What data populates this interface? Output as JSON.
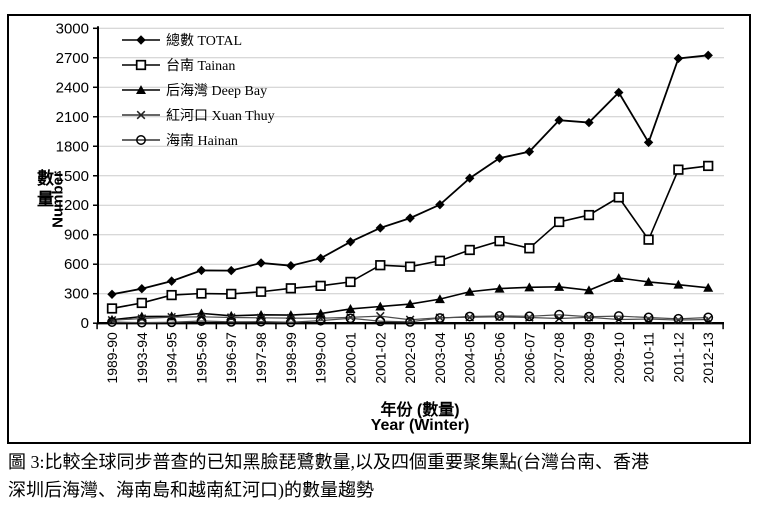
{
  "figure": {
    "caption_line1": "圖 3:比較全球同步普查的已知黑臉琵鷺數量,以及四個重要聚集點(台灣台南、香港",
    "caption_line2": "深圳后海灣、海南島和越南紅河口)的數量趨勢"
  },
  "chart_data": {
    "type": "line",
    "title": "",
    "grid": true,
    "legend_position": "top-left-inside",
    "x_axis": {
      "title_zh": "年份 (數量)",
      "title_en": "Year (Winter)",
      "categories": [
        "1989-90",
        "1993-94",
        "1994-95",
        "1995-96",
        "1996-97",
        "1997-98",
        "1998-99",
        "1999-00",
        "2000-01",
        "2001-02",
        "2002-03",
        "2003-04",
        "2004-05",
        "2005-06",
        "2006-07",
        "2007-08",
        "2008-09",
        "2009-10",
        "2010-11",
        "2011-12",
        "2012-13"
      ]
    },
    "y_axis": {
      "title_zh": "數量",
      "title_en": "Number",
      "min": 0,
      "max": 3000,
      "tick_interval": 300,
      "ticks": [
        0,
        300,
        600,
        900,
        1200,
        1500,
        1800,
        2100,
        2400,
        2700,
        3000
      ]
    },
    "series": [
      {
        "name": "總數 TOTAL",
        "marker": "diamond",
        "line_color": "#000000",
        "line_width": 1.8,
        "values": [
          294,
          351,
          428,
          537,
          535,
          613,
          585,
          660,
          828,
          969,
          1069,
          1206,
          1475,
          1679,
          1745,
          2065,
          2041,
          2347,
          1839,
          2693,
          2725
        ]
      },
      {
        "name": "台南 Tainan",
        "marker": "square-open",
        "line_color": "#000000",
        "line_width": 1.6,
        "values": [
          150,
          206,
          286,
          302,
          298,
          320,
          355,
          380,
          420,
          590,
          575,
          635,
          745,
          835,
          762,
          1030,
          1100,
          1280,
          850,
          1562,
          1600
        ]
      },
      {
        "name": "后海灣 Deep Bay",
        "marker": "triangle",
        "line_color": "#000000",
        "line_width": 1.6,
        "values": [
          35,
          68,
          70,
          100,
          75,
          85,
          83,
          98,
          145,
          170,
          195,
          245,
          320,
          352,
          365,
          370,
          335,
          460,
          420,
          392,
          360
        ]
      },
      {
        "name": "紅河口 Xuan Thuy",
        "marker": "x",
        "line_color": "#4d4d4d",
        "line_width": 1.2,
        "values": [
          30,
          48,
          62,
          65,
          58,
          55,
          52,
          50,
          60,
          72,
          35,
          56,
          60,
          65,
          58,
          48,
          60,
          38,
          42,
          32,
          38
        ]
      },
      {
        "name": "海南 Hainan",
        "marker": "circle-open",
        "line_color": "#4d4d4d",
        "line_width": 1.2,
        "values": [
          12,
          6,
          10,
          22,
          14,
          16,
          10,
          26,
          50,
          20,
          14,
          52,
          68,
          74,
          70,
          86,
          66,
          72,
          58,
          44,
          58
        ]
      }
    ]
  }
}
